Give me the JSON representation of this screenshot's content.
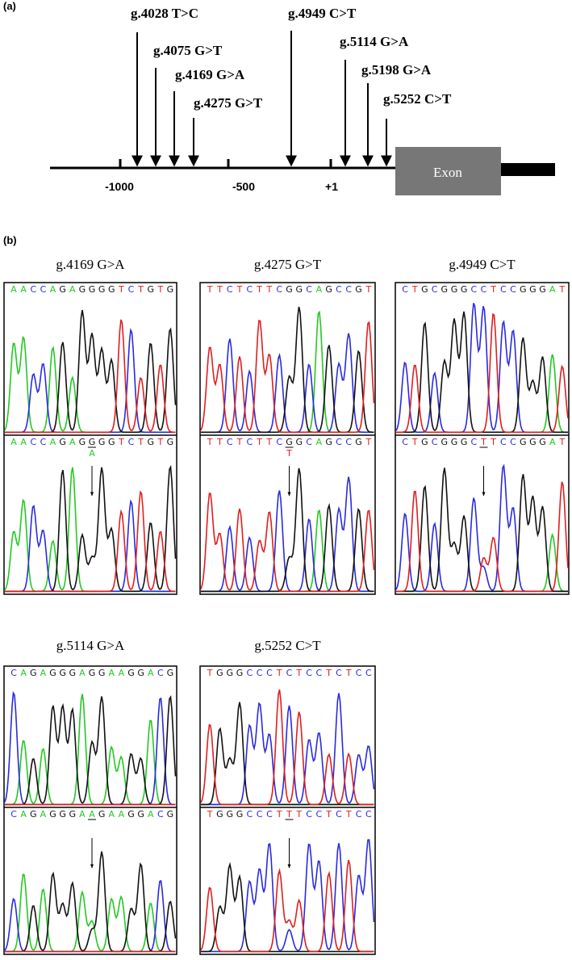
{
  "panel_a": {
    "label": "(a)",
    "variants": [
      "g.4028 T>C",
      "g.4075 G>T",
      "g.4169 G>A",
      "g.4275 G>T",
      "g.4949 C>T",
      "g.5114 G>A",
      "g.5198 G>A",
      "g.5252 C>T"
    ],
    "scale": [
      "-1000",
      "-500",
      "+1"
    ],
    "exon": "Exon"
  },
  "panel_b": {
    "label": "(b)",
    "traces": [
      {
        "title": "g.4169 G>A",
        "reference": "AACCAGAGGGGTCTGTG",
        "mutant": "AACCAGAGGGGTCTGTG",
        "mutant_label": "A"
      },
      {
        "title": "g.4275 G>T",
        "reference": "TTCTCTTCGGCAGCCGT",
        "mutant": "TTCTCTTCGGCAGCCGT",
        "mutant_label": "T"
      },
      {
        "title": "g.4949 C>T",
        "reference": "CTGCGGGCCTCCGGGAT",
        "mutant": "CTGCGGGCTTCCGGGAT"
      },
      {
        "title": "g.5114 G>A",
        "reference": "CAGAGGGAGGAAGGACG",
        "mutant": "CAGAGGGAAGAAGGACG"
      },
      {
        "title": "g.5252 C>T",
        "reference": "TGGGCCCTCTCCTCTCC",
        "mutant": "TGGGCCCTTTCCTCTCC"
      }
    ]
  }
}
